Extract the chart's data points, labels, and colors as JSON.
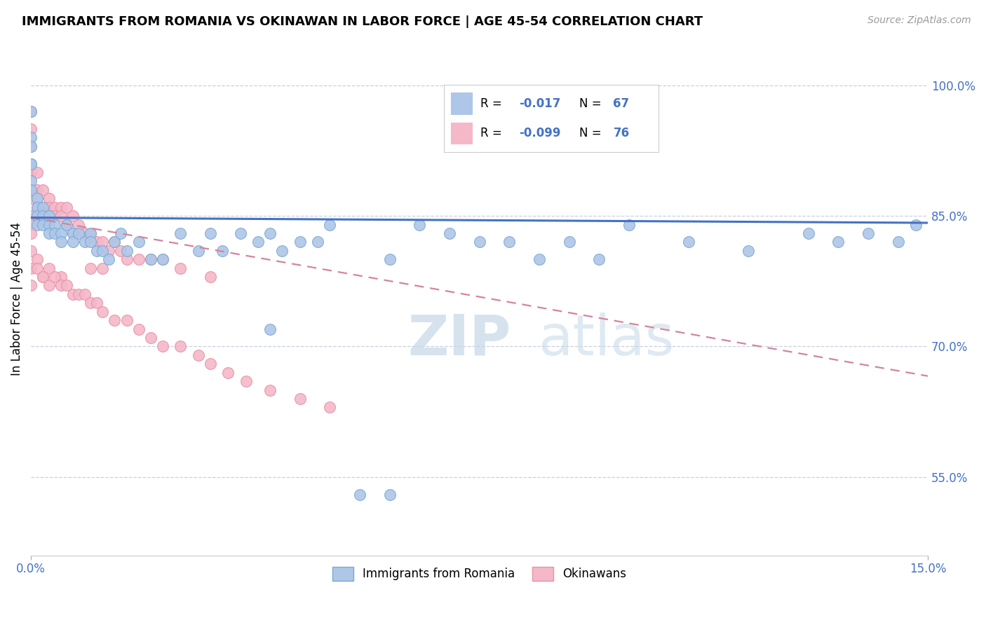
{
  "title": "IMMIGRANTS FROM ROMANIA VS OKINAWAN IN LABOR FORCE | AGE 45-54 CORRELATION CHART",
  "source": "Source: ZipAtlas.com",
  "ylabel": "In Labor Force | Age 45-54",
  "xlim": [
    0.0,
    0.15
  ],
  "ylim": [
    0.46,
    1.05
  ],
  "ytick_positions": [
    0.55,
    0.7,
    0.85,
    1.0
  ],
  "ytick_labels": [
    "55.0%",
    "70.0%",
    "85.0%",
    "100.0%"
  ],
  "legend_r1": "-0.017",
  "legend_n1": "67",
  "legend_r2": "-0.099",
  "legend_n2": "76",
  "scatter_blue_x": [
    0.0,
    0.0,
    0.0,
    0.0,
    0.0,
    0.0,
    0.0,
    0.001,
    0.001,
    0.001,
    0.001,
    0.002,
    0.002,
    0.002,
    0.003,
    0.003,
    0.003,
    0.004,
    0.004,
    0.005,
    0.005,
    0.006,
    0.007,
    0.007,
    0.008,
    0.009,
    0.01,
    0.01,
    0.011,
    0.012,
    0.013,
    0.014,
    0.015,
    0.016,
    0.018,
    0.02,
    0.022,
    0.025,
    0.028,
    0.03,
    0.032,
    0.035,
    0.038,
    0.04,
    0.042,
    0.045,
    0.048,
    0.05,
    0.055,
    0.06,
    0.065,
    0.07,
    0.075,
    0.08,
    0.085,
    0.09,
    0.095,
    0.1,
    0.11,
    0.12,
    0.13,
    0.135,
    0.14,
    0.145,
    0.148,
    0.04,
    0.06
  ],
  "scatter_blue_y": [
    0.97,
    0.94,
    0.91,
    0.93,
    0.91,
    0.89,
    0.88,
    0.87,
    0.86,
    0.85,
    0.84,
    0.86,
    0.85,
    0.84,
    0.85,
    0.84,
    0.83,
    0.84,
    0.83,
    0.83,
    0.82,
    0.84,
    0.83,
    0.82,
    0.83,
    0.82,
    0.83,
    0.82,
    0.81,
    0.81,
    0.8,
    0.82,
    0.83,
    0.81,
    0.82,
    0.8,
    0.8,
    0.83,
    0.81,
    0.83,
    0.81,
    0.83,
    0.82,
    0.83,
    0.81,
    0.82,
    0.82,
    0.84,
    0.53,
    0.8,
    0.84,
    0.83,
    0.82,
    0.82,
    0.8,
    0.82,
    0.8,
    0.84,
    0.82,
    0.81,
    0.83,
    0.82,
    0.83,
    0.82,
    0.84,
    0.72,
    0.53
  ],
  "scatter_pink_x": [
    0.0,
    0.0,
    0.0,
    0.0,
    0.0,
    0.0,
    0.0,
    0.0,
    0.0,
    0.0,
    0.0,
    0.001,
    0.001,
    0.001,
    0.001,
    0.001,
    0.002,
    0.002,
    0.003,
    0.003,
    0.003,
    0.004,
    0.004,
    0.005,
    0.005,
    0.006,
    0.006,
    0.007,
    0.007,
    0.008,
    0.009,
    0.01,
    0.011,
    0.012,
    0.013,
    0.014,
    0.015,
    0.016,
    0.018,
    0.02,
    0.022,
    0.025,
    0.03,
    0.01,
    0.012,
    0.005,
    0.003,
    0.002,
    0.001,
    0.0,
    0.0,
    0.001,
    0.002,
    0.003,
    0.004,
    0.005,
    0.006,
    0.007,
    0.008,
    0.009,
    0.01,
    0.011,
    0.012,
    0.014,
    0.016,
    0.018,
    0.02,
    0.022,
    0.025,
    0.028,
    0.03,
    0.033,
    0.036,
    0.04,
    0.045,
    0.05
  ],
  "scatter_pink_y": [
    0.97,
    0.95,
    0.93,
    0.91,
    0.9,
    0.88,
    0.87,
    0.85,
    0.84,
    0.83,
    0.81,
    0.9,
    0.88,
    0.87,
    0.86,
    0.85,
    0.88,
    0.86,
    0.87,
    0.86,
    0.85,
    0.86,
    0.85,
    0.86,
    0.85,
    0.86,
    0.84,
    0.85,
    0.83,
    0.84,
    0.83,
    0.83,
    0.82,
    0.82,
    0.81,
    0.82,
    0.81,
    0.8,
    0.8,
    0.8,
    0.8,
    0.79,
    0.78,
    0.79,
    0.79,
    0.78,
    0.79,
    0.78,
    0.8,
    0.79,
    0.77,
    0.79,
    0.78,
    0.77,
    0.78,
    0.77,
    0.77,
    0.76,
    0.76,
    0.76,
    0.75,
    0.75,
    0.74,
    0.73,
    0.73,
    0.72,
    0.71,
    0.7,
    0.7,
    0.69,
    0.68,
    0.67,
    0.66,
    0.65,
    0.64,
    0.63
  ],
  "blue_color": "#aec6e8",
  "blue_edge": "#7aaad0",
  "pink_color": "#f4b8c8",
  "pink_edge": "#e890a8",
  "trendline_blue_color": "#4472c4",
  "trendline_pink_color": "#d4849a",
  "trendline_blue_y0": 0.848,
  "trendline_blue_y1": 0.842,
  "trendline_pink_y0": 0.848,
  "trendline_pink_y1": 0.666,
  "watermark_zip": "ZIP",
  "watermark_atlas": "atlas",
  "grid_color": "#c8d0e0",
  "background_color": "#ffffff"
}
